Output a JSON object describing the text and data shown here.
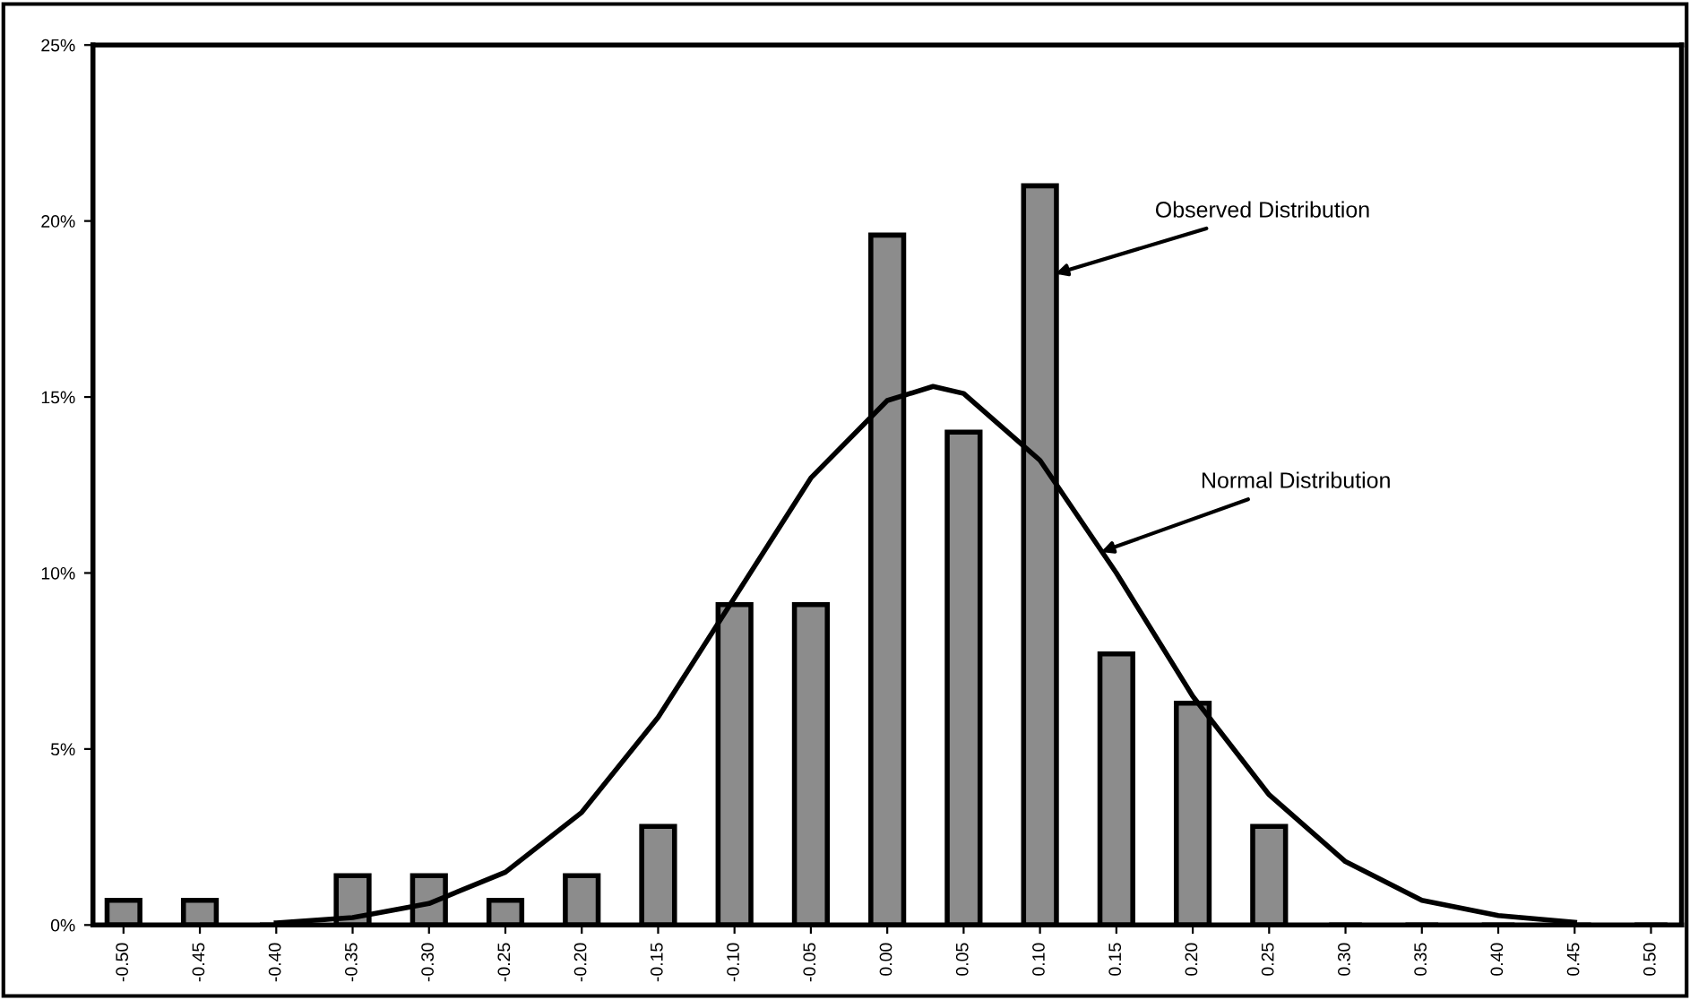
{
  "chart_data": {
    "type": "bar",
    "x": [
      -0.5,
      -0.45,
      -0.4,
      -0.35,
      -0.3,
      -0.25,
      -0.2,
      -0.15,
      -0.1,
      -0.05,
      0.0,
      0.05,
      0.1,
      0.15,
      0.2,
      0.25,
      0.3,
      0.35,
      0.4,
      0.45,
      0.5
    ],
    "series": [
      {
        "color": "#8c8c8c",
        "values": [
          0.7,
          0.7,
          0,
          1.4,
          1.4,
          0.7,
          1.4,
          2.8,
          9.1,
          9.1,
          19.6,
          14.0,
          21.0,
          7.7,
          6.3,
          2.8,
          0,
          0,
          0,
          0,
          0
        ]
      },
      {
        "type": "line",
        "color": "#000000",
        "x": [
          -0.4,
          -0.35,
          -0.3,
          -0.25,
          -0.2,
          -0.15,
          -0.1,
          -0.05,
          0.0,
          0.03,
          0.05,
          0.1,
          0.15,
          0.2,
          0.25,
          0.3,
          0.35,
          0.4,
          0.45
        ],
        "values": [
          0.06,
          0.21,
          0.61,
          1.5,
          3.2,
          5.9,
          9.3,
          12.7,
          14.9,
          15.3,
          15.1,
          13.2,
          10.0,
          6.5,
          3.7,
          1.8,
          0.7,
          0.27,
          0.08
        ]
      }
    ],
    "xlim": [
      -0.52,
      0.52
    ],
    "xticks": [
      {
        "value": -0.5,
        "label": "-0.50"
      },
      {
        "value": -0.45,
        "label": "-0.45"
      },
      {
        "value": -0.4,
        "label": "-0.40"
      },
      {
        "value": -0.35,
        "label": "-0.35"
      },
      {
        "value": -0.3,
        "label": "-0.30"
      },
      {
        "value": -0.25,
        "label": "-0.25"
      },
      {
        "value": -0.2,
        "label": "-0.20"
      },
      {
        "value": -0.15,
        "label": "-0.15"
      },
      {
        "value": -0.1,
        "label": "-0.10"
      },
      {
        "value": -0.05,
        "label": "-0.05"
      },
      {
        "value": 0.0,
        "label": "0.00"
      },
      {
        "value": 0.05,
        "label": "0.05"
      },
      {
        "value": 0.1,
        "label": "0.10"
      },
      {
        "value": 0.15,
        "label": "0.15"
      },
      {
        "value": 0.2,
        "label": "0.20"
      },
      {
        "value": 0.25,
        "label": "0.25"
      },
      {
        "value": 0.3,
        "label": "0.30"
      },
      {
        "value": 0.35,
        "label": "0.35"
      },
      {
        "value": 0.4,
        "label": "0.40"
      },
      {
        "value": 0.45,
        "label": "0.45"
      },
      {
        "value": 0.5,
        "label": "0.50"
      }
    ],
    "ylim": [
      0,
      25
    ],
    "yticks": [
      {
        "value": 0,
        "label": "0%"
      },
      {
        "value": 5,
        "label": "5%"
      },
      {
        "value": 10,
        "label": "10%"
      },
      {
        "value": 15,
        "label": "15%"
      },
      {
        "value": 20,
        "label": "20%"
      },
      {
        "value": 25,
        "label": "25%"
      }
    ],
    "grid": false,
    "annotations": [
      {
        "text": "Observed Distribution",
        "x": 0.11,
        "y": 18.5
      },
      {
        "text": "Normal Distribution",
        "x": 0.14,
        "y": 10.6
      }
    ]
  }
}
